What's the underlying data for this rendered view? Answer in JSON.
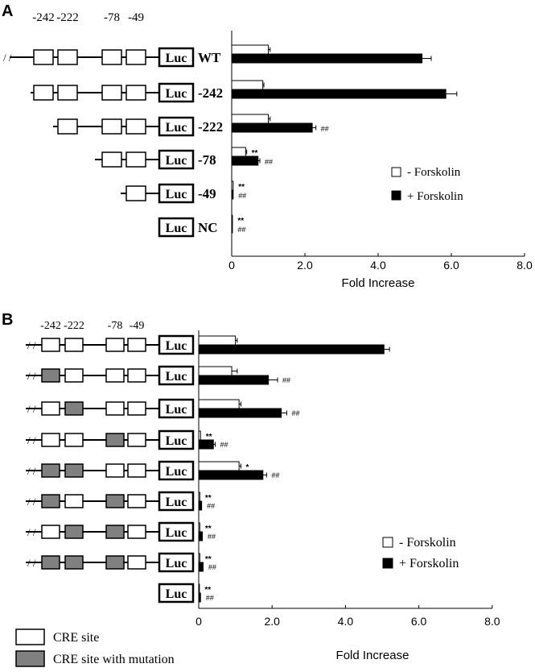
{
  "chart_data": [
    {
      "panel": "A",
      "type": "bar",
      "orientation": "horizontal",
      "xlabel": "Fold Increase",
      "xlim": [
        0,
        8
      ],
      "xticks": [
        "0",
        "2.0",
        "4.0",
        "6.0",
        "8.0"
      ],
      "site_labels": [
        "-242",
        "-222",
        "-78",
        "-49"
      ],
      "legend": {
        "placement": "right",
        "items": [
          "-  Forskolin",
          "+ Forskolin"
        ]
      },
      "categories": [
        "WT",
        "-242",
        "-222",
        "-78",
        "-49",
        "NC"
      ],
      "series": [
        {
          "name": "-  Forskolin",
          "fill": "#ffffff",
          "values": [
            1.0,
            0.85,
            1.0,
            0.38,
            0.04,
            0.02
          ],
          "errors": [
            0.05,
            0.03,
            0.05,
            0.03,
            0.01,
            0.01
          ]
        },
        {
          "name": "+ Forskolin",
          "fill": "#000000",
          "values": [
            5.2,
            5.85,
            2.2,
            0.72,
            0.04,
            0.02
          ],
          "errors": [
            0.25,
            0.3,
            0.1,
            0.05,
            0.01,
            0.01
          ]
        }
      ],
      "annotations_minus": [
        "",
        "",
        "",
        "**",
        "**",
        "**"
      ],
      "annotations_plus": [
        "",
        "",
        "##",
        "##",
        "##",
        "##"
      ]
    },
    {
      "panel": "B",
      "type": "bar",
      "orientation": "horizontal",
      "xlabel": "Fold Increase",
      "xlim": [
        0,
        8
      ],
      "xticks": [
        "0",
        "2.0",
        "4.0",
        "6.0",
        "8.0"
      ],
      "site_labels": [
        "-242",
        "-222",
        "-78",
        "-49"
      ],
      "legend": {
        "placement": "right",
        "items": [
          "-  Forskolin",
          "+ Forskolin"
        ]
      },
      "construct_mutations": [
        [
          false,
          false,
          false,
          false
        ],
        [
          true,
          false,
          false,
          false
        ],
        [
          false,
          true,
          false,
          false
        ],
        [
          false,
          false,
          true,
          false
        ],
        [
          true,
          true,
          false,
          false
        ],
        [
          true,
          false,
          true,
          false
        ],
        [
          false,
          true,
          true,
          false
        ],
        [
          true,
          true,
          true,
          false
        ],
        null
      ],
      "series": [
        {
          "name": "-  Forskolin",
          "fill": "#ffffff",
          "values": [
            1.0,
            0.9,
            1.1,
            0.05,
            1.1,
            0.03,
            0.03,
            0.03,
            0.02
          ],
          "errors": [
            0.05,
            0.15,
            0.05,
            0.01,
            0.05,
            0.01,
            0.01,
            0.01,
            0.01
          ]
        },
        {
          "name": "+ Forskolin",
          "fill": "#000000",
          "values": [
            5.05,
            1.9,
            2.25,
            0.4,
            1.75,
            0.08,
            0.1,
            0.12,
            0.05
          ],
          "errors": [
            0.15,
            0.25,
            0.15,
            0.05,
            0.1,
            0.01,
            0.01,
            0.01,
            0.01
          ]
        }
      ],
      "annotations_minus": [
        "",
        "",
        "",
        "**",
        "*",
        "**",
        "**",
        "**",
        "**"
      ],
      "annotations_plus": [
        "",
        "##",
        "##",
        "##",
        "##",
        "##",
        "##",
        "##",
        "##"
      ],
      "site_legend": [
        "CRE site",
        "CRE site with mutation"
      ]
    }
  ],
  "luc_label": "Luc",
  "colors": {
    "mutated_site": "#808080",
    "bar_minus": "#ffffff",
    "bar_plus": "#000000"
  }
}
